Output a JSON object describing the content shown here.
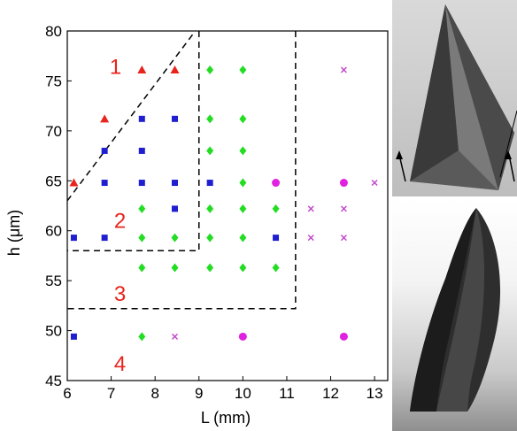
{
  "chart_data": {
    "type": "scatter",
    "title": "",
    "xlabel": "L (mm)",
    "ylabel": "h (μm)",
    "xlim": [
      6,
      13.3
    ],
    "ylim": [
      45,
      80
    ],
    "xticks": [
      "6",
      "7",
      "8",
      "9",
      "10",
      "11",
      "12",
      "13"
    ],
    "yticks": [
      "45",
      "50",
      "55",
      "60",
      "65",
      "70",
      "75",
      "80"
    ],
    "grid": false,
    "series": [
      {
        "marker": "triangle",
        "color": "#e8241c",
        "points": [
          [
            6.15,
            64.8
          ],
          [
            6.85,
            71.2
          ],
          [
            7.7,
            76.1
          ],
          [
            8.45,
            76.1
          ]
        ]
      },
      {
        "marker": "square",
        "color": "#1f1fd0",
        "points": [
          [
            6.15,
            59.3
          ],
          [
            6.15,
            49.4
          ],
          [
            6.85,
            59.3
          ],
          [
            6.85,
            64.8
          ],
          [
            6.85,
            68.0
          ],
          [
            7.7,
            64.8
          ],
          [
            7.7,
            68.0
          ],
          [
            7.7,
            71.2
          ],
          [
            8.45,
            64.8
          ],
          [
            8.45,
            71.2
          ],
          [
            8.45,
            62.2
          ],
          [
            9.25,
            64.8
          ],
          [
            10.75,
            59.3
          ]
        ]
      },
      {
        "marker": "diamond",
        "color": "#22dd22",
        "points": [
          [
            7.7,
            62.2
          ],
          [
            7.7,
            59.3
          ],
          [
            7.7,
            56.3
          ],
          [
            7.7,
            49.4
          ],
          [
            8.45,
            59.3
          ],
          [
            8.45,
            56.3
          ],
          [
            9.25,
            76.1
          ],
          [
            9.25,
            71.2
          ],
          [
            9.25,
            68.0
          ],
          [
            9.25,
            62.2
          ],
          [
            9.25,
            59.3
          ],
          [
            9.25,
            56.3
          ],
          [
            10.0,
            76.1
          ],
          [
            10.0,
            71.2
          ],
          [
            10.0,
            68.0
          ],
          [
            10.0,
            64.8
          ],
          [
            10.0,
            62.2
          ],
          [
            10.0,
            59.3
          ],
          [
            10.0,
            56.3
          ],
          [
            10.75,
            62.2
          ],
          [
            10.75,
            56.3
          ]
        ]
      },
      {
        "marker": "circle",
        "color": "#e022e0",
        "points": [
          [
            10.75,
            64.8
          ],
          [
            12.3,
            64.8
          ],
          [
            10.0,
            49.4
          ],
          [
            12.3,
            49.4
          ]
        ]
      },
      {
        "marker": "x",
        "color": "#c044c8",
        "points": [
          [
            8.45,
            49.4
          ],
          [
            11.55,
            62.2
          ],
          [
            11.55,
            59.3
          ],
          [
            12.3,
            76.1
          ],
          [
            12.3,
            62.2
          ],
          [
            12.3,
            59.3
          ],
          [
            13.0,
            64.8
          ]
        ]
      }
    ],
    "region_labels": [
      {
        "text": "1",
        "x": 7.1,
        "y": 76.4
      },
      {
        "text": "2",
        "x": 7.2,
        "y": 61.0
      },
      {
        "text": "3",
        "x": 7.2,
        "y": 53.7
      },
      {
        "text": "4",
        "x": 7.2,
        "y": 46.7
      }
    ],
    "boundaries": [
      {
        "style": "dashed",
        "points": [
          [
            6.0,
            63.0
          ],
          [
            8.9,
            79.9
          ]
        ]
      },
      {
        "style": "dashed",
        "points": [
          [
            9.0,
            80.0
          ],
          [
            9.0,
            58.0
          ],
          [
            6.0,
            58.0
          ]
        ]
      },
      {
        "style": "dashed",
        "points": [
          [
            11.2,
            80.0
          ],
          [
            11.2,
            52.2
          ],
          [
            6.0,
            52.2
          ]
        ]
      }
    ]
  }
}
